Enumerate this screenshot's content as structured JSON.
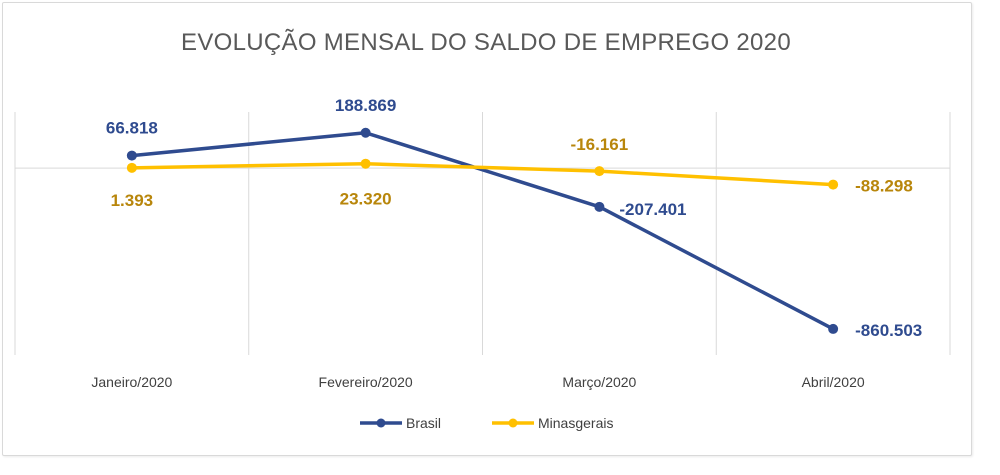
{
  "chart_data": {
    "type": "line",
    "title": "EVOLUÇÃO MENSAL DO SALDO DE EMPREGO 2020",
    "categories": [
      "Janeiro/2020",
      "Fevereiro/2020",
      "Março/2020",
      "Abril/2020"
    ],
    "ylim": [
      -1000000,
      300000
    ],
    "grid": "vertical",
    "legend": "bottom",
    "series": [
      {
        "name": "Brasil",
        "color": "#2f4b8f",
        "values": [
          66818,
          188869,
          -207401,
          -860503
        ],
        "labels": [
          "66.818",
          "188.869",
          "-207.401",
          "-860.503"
        ]
      },
      {
        "name": "Minasgerais",
        "color": "#ffc000",
        "label_color": "#b8860b",
        "values": [
          1393,
          23320,
          -16161,
          -88298
        ],
        "labels": [
          "1.393",
          "23.320",
          "-16.161",
          "-88.298"
        ]
      }
    ]
  }
}
